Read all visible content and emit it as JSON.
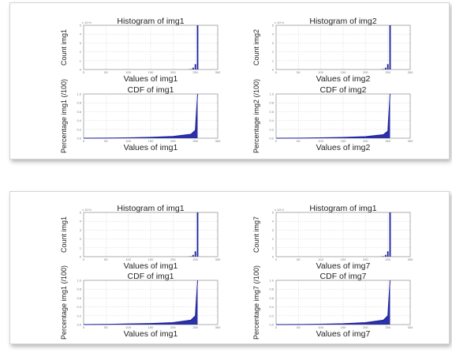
{
  "colors": {
    "series": "#1a1f9e",
    "frame": "#9a9a9a",
    "grid": "#cfcfcf"
  },
  "panels": [
    {
      "subplots": [
        {
          "type": "histogram",
          "title": "Histogram of img1",
          "xlabel": "Values of img1",
          "ylabel": "Count img1",
          "exponent": "x 10^4"
        },
        {
          "type": "histogram",
          "title": "Histogram of img2",
          "xlabel": "Values of img2",
          "ylabel": "Count img2",
          "exponent": "x 10^4"
        },
        {
          "type": "cdf",
          "title": "CDF of img1",
          "xlabel": "Values of img1",
          "ylabel": "Percentage img1 (/100)"
        },
        {
          "type": "cdf",
          "title": "CDF of img2",
          "xlabel": "Values of img2",
          "ylabel": "Percentage img2 (/100)"
        }
      ]
    },
    {
      "subplots": [
        {
          "type": "histogram",
          "title": "Histogram of img1",
          "xlabel": "Values of img1",
          "ylabel": "Count img1",
          "exponent": "x 10^4"
        },
        {
          "type": "histogram",
          "title": "Histogram of img1",
          "xlabel": "Values of img7",
          "ylabel": "Count img7",
          "exponent": "x 10^4"
        },
        {
          "type": "cdf",
          "title": "CDF of img1",
          "xlabel": "Values of img1",
          "ylabel": "Percentage img1 (/100)"
        },
        {
          "type": "cdf",
          "title": "CDF of img7",
          "xlabel": "Values of img7",
          "ylabel": "Percentage img7 (/100)"
        }
      ]
    }
  ],
  "chart_data": [
    {
      "type": "bar",
      "title": "Histogram of img1",
      "xlabel": "Values of img1",
      "ylabel": "Count img1",
      "x": [
        0,
        50,
        100,
        150,
        200,
        235,
        240,
        245,
        250,
        255
      ],
      "values": [
        0,
        0,
        0,
        0,
        0,
        0.02,
        0.05,
        0.2,
        0.6,
        5
      ],
      "xlim": [
        0,
        300
      ],
      "ylim": [
        0,
        5
      ],
      "grid": true
    },
    {
      "type": "bar",
      "title": "Histogram of img2",
      "xlabel": "Values of img2",
      "ylabel": "Count img2",
      "x": [
        0,
        50,
        100,
        150,
        200,
        235,
        240,
        245,
        250,
        255
      ],
      "values": [
        0,
        0,
        0,
        0,
        0,
        0.02,
        0.05,
        0.2,
        0.6,
        5
      ],
      "xlim": [
        0,
        300
      ],
      "ylim": [
        0,
        5
      ],
      "grid": true
    },
    {
      "type": "area",
      "title": "CDF of img1",
      "xlabel": "Values of img1",
      "ylabel": "Percentage img1 (/100)",
      "x": [
        0,
        50,
        100,
        150,
        200,
        240,
        250,
        255
      ],
      "values": [
        0,
        0.003,
        0.01,
        0.02,
        0.04,
        0.09,
        0.18,
        1.0
      ],
      "xlim": [
        0,
        300
      ],
      "ylim": [
        0,
        1
      ],
      "grid": true
    },
    {
      "type": "area",
      "title": "CDF of img2",
      "xlabel": "Values of img2",
      "ylabel": "Percentage img2 (/100)",
      "x": [
        0,
        50,
        100,
        150,
        200,
        240,
        250,
        255
      ],
      "values": [
        0,
        0.002,
        0.008,
        0.018,
        0.035,
        0.08,
        0.16,
        1.0
      ],
      "xlim": [
        0,
        300
      ],
      "ylim": [
        0,
        1
      ],
      "grid": true
    },
    {
      "type": "bar",
      "title": "Histogram of img1",
      "xlabel": "Values of img1",
      "ylabel": "Count img1",
      "x": [
        0,
        50,
        100,
        150,
        200,
        235,
        240,
        245,
        250,
        255
      ],
      "values": [
        0,
        0,
        0,
        0,
        0,
        0.02,
        0.05,
        0.2,
        0.6,
        5
      ],
      "xlim": [
        0,
        300
      ],
      "ylim": [
        0,
        5
      ],
      "grid": true
    },
    {
      "type": "bar",
      "title": "Histogram of img1",
      "xlabel": "Values of img7",
      "ylabel": "Count img7",
      "x": [
        0,
        50,
        100,
        150,
        200,
        235,
        240,
        245,
        250,
        255
      ],
      "values": [
        0,
        0,
        0,
        0,
        0,
        0.02,
        0.05,
        0.2,
        0.6,
        5
      ],
      "xlim": [
        0,
        300
      ],
      "ylim": [
        0,
        5
      ],
      "grid": true
    },
    {
      "type": "area",
      "title": "CDF of img1",
      "xlabel": "Values of img1",
      "ylabel": "Percentage img1 (/100)",
      "x": [
        0,
        50,
        100,
        150,
        200,
        240,
        250,
        255
      ],
      "values": [
        0,
        0.005,
        0.015,
        0.025,
        0.045,
        0.1,
        0.2,
        1.0
      ],
      "xlim": [
        0,
        300
      ],
      "ylim": [
        0,
        1
      ],
      "grid": true
    },
    {
      "type": "area",
      "title": "CDF of img7",
      "xlabel": "Values of img7",
      "ylabel": "Percentage img7 (/100)",
      "x": [
        0,
        50,
        100,
        150,
        200,
        240,
        250,
        255
      ],
      "values": [
        0,
        0.002,
        0.008,
        0.02,
        0.045,
        0.1,
        0.2,
        1.0
      ],
      "xlim": [
        0,
        300
      ],
      "ylim": [
        0,
        1
      ],
      "grid": true
    }
  ]
}
